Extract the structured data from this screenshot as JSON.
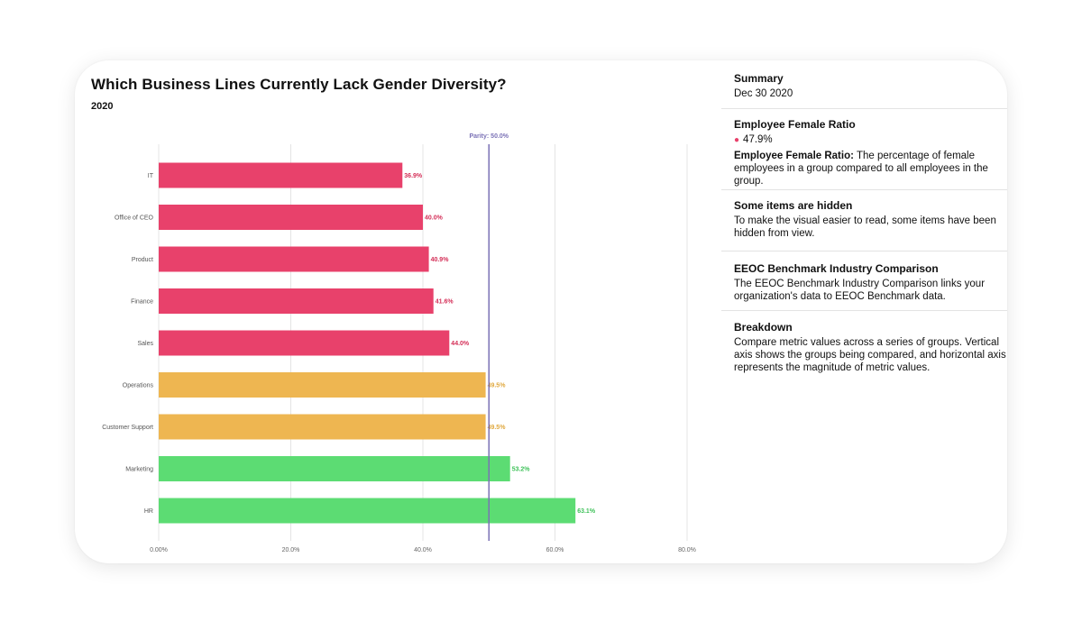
{
  "chart_data": {
    "type": "bar",
    "orientation": "horizontal",
    "title": "Which Business Lines Currently Lack Gender Diversity?",
    "subtitle": "2020",
    "categories": [
      "IT",
      "Office of CEO",
      "Product",
      "Finance",
      "Sales",
      "Operations",
      "Customer Support",
      "Marketing",
      "HR"
    ],
    "values": [
      36.9,
      40.0,
      40.9,
      41.6,
      44.0,
      49.5,
      49.5,
      53.2,
      63.1
    ],
    "value_labels": [
      "36.9%",
      "40.0%",
      "40.9%",
      "41.6%",
      "44.0%",
      "49.5%",
      "49.5%",
      "53.2%",
      "63.1%"
    ],
    "bar_colors": [
      "#e8416b",
      "#e8416b",
      "#e8416b",
      "#e8416b",
      "#e8416b",
      "#eeb651",
      "#eeb651",
      "#5cdc73",
      "#5cdc73"
    ],
    "label_colors": [
      "#d42e57",
      "#d42e57",
      "#d42e57",
      "#d42e57",
      "#d42e57",
      "#e0a83e",
      "#e0a83e",
      "#3fc25a",
      "#3fc25a"
    ],
    "xlim": [
      0,
      80
    ],
    "x_ticks": [
      0,
      20,
      40,
      60,
      80
    ],
    "x_tick_labels": [
      "0.00%",
      "20.0%",
      "40.0%",
      "60.0%",
      "80.0%"
    ],
    "grid": true,
    "reference_line": {
      "value": 50,
      "label": "Parity: 50.0%",
      "color": "#7b72b6"
    }
  },
  "sidebar": {
    "summary": {
      "heading": "Summary",
      "date": "Dec 30 2020"
    },
    "metric": {
      "heading": "Employee Female Ratio",
      "value": "47.9%",
      "def_term": "Employee Female Ratio:",
      "def_text": "The percentage of female employees in a group compared to all employees in the group."
    },
    "hidden": {
      "heading": "Some items are hidden",
      "text": "To make the visual easier to read, some items have been hidden from view."
    },
    "eeoc": {
      "heading": "EEOC Benchmark Industry Comparison",
      "text": "The EEOC Benchmark Industry Comparison links your organization's data to EEOC Benchmark data."
    },
    "breakdown": {
      "heading": "Breakdown",
      "text": "Compare metric values across a series of groups. Vertical axis shows the groups being compared, and horizontal axis represents the magnitude of metric values."
    }
  }
}
